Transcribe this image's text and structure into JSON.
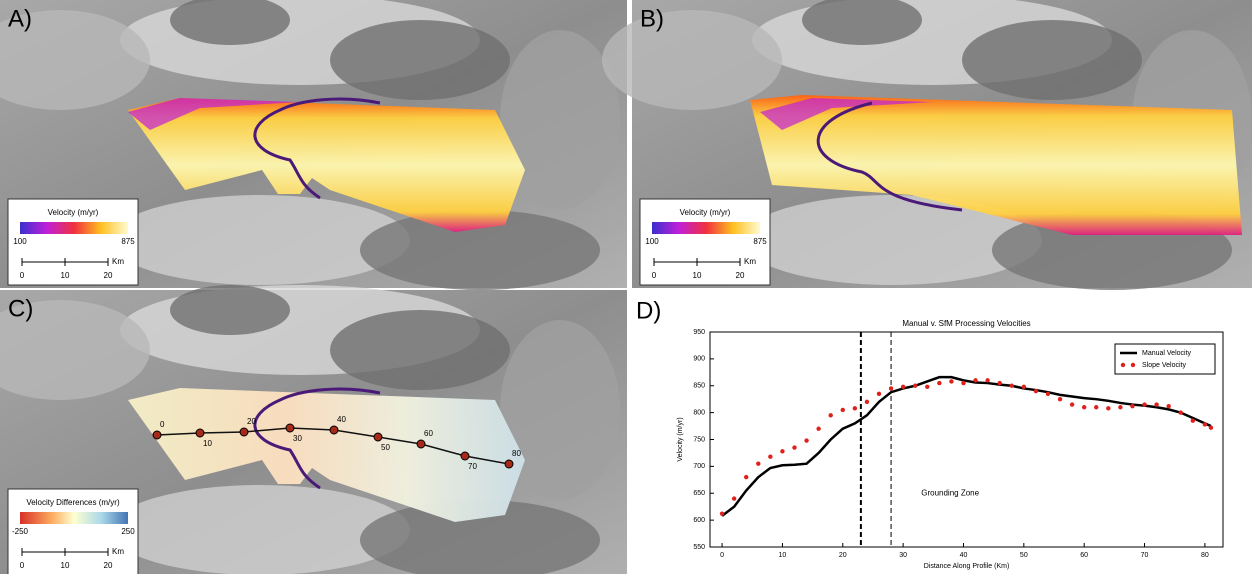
{
  "panels": [
    {
      "label": "A)",
      "legend_title": "Velocity (m/yr)",
      "cbar_min": 100,
      "cbar_max": 875,
      "scale_ticks": [
        0,
        10,
        20
      ],
      "scale_unit": "Km"
    },
    {
      "label": "B)",
      "legend_title": "Velocity (m/yr)",
      "cbar_min": 100,
      "cbar_max": 875,
      "scale_ticks": [
        0,
        10,
        20
      ],
      "scale_unit": "Km"
    },
    {
      "label": "C)",
      "legend_title": "Velocity Differences (m/yr)",
      "cbar_min": -250,
      "cbar_max": 250,
      "scale_ticks": [
        0,
        10,
        20
      ],
      "scale_unit": "Km",
      "profile_labels": [
        0,
        10,
        20,
        30,
        40,
        50,
        60,
        70,
        80
      ]
    }
  ],
  "chart_label": "D)",
  "chart_data": {
    "type": "line",
    "title": "Manual v. SfM Processing Velocities",
    "xlabel": "Distance Along Profile (Km)",
    "ylabel": "Velocity (m/yr)",
    "xlim": [
      -2,
      83
    ],
    "xticks": [
      0,
      10,
      20,
      30,
      40,
      50,
      60,
      70,
      80
    ],
    "ylim": [
      550,
      950
    ],
    "yticks": [
      550,
      600,
      650,
      700,
      750,
      800,
      850,
      900,
      950
    ],
    "annotation": "Grounding Zone",
    "vlines": [
      23,
      28
    ],
    "legend": "upper right",
    "x": [
      0,
      2,
      4,
      6,
      8,
      10,
      12,
      14,
      16,
      18,
      20,
      22,
      24,
      26,
      28,
      30,
      32,
      34,
      36,
      38,
      40,
      42,
      44,
      46,
      48,
      50,
      52,
      54,
      56,
      58,
      60,
      62,
      64,
      66,
      68,
      70,
      72,
      74,
      76,
      78,
      80,
      81
    ],
    "series": [
      {
        "name": "Manual Velocity",
        "color": "#000000",
        "values": [
          608,
          625,
          655,
          680,
          697,
          702,
          703,
          705,
          725,
          750,
          770,
          780,
          795,
          820,
          838,
          845,
          850,
          858,
          866,
          866,
          860,
          856,
          855,
          852,
          850,
          845,
          842,
          838,
          833,
          830,
          827,
          825,
          822,
          818,
          815,
          813,
          810,
          806,
          800,
          790,
          780,
          775
        ]
      },
      {
        "name": "Slope Velocity",
        "color": "#e0201b",
        "values": [
          612,
          640,
          680,
          705,
          718,
          728,
          735,
          748,
          770,
          795,
          805,
          808,
          820,
          835,
          845,
          848,
          850,
          848,
          855,
          858,
          855,
          860,
          860,
          855,
          850,
          848,
          840,
          835,
          825,
          815,
          810,
          810,
          808,
          810,
          812,
          815,
          815,
          812,
          800,
          785,
          778,
          772
        ]
      }
    ]
  }
}
